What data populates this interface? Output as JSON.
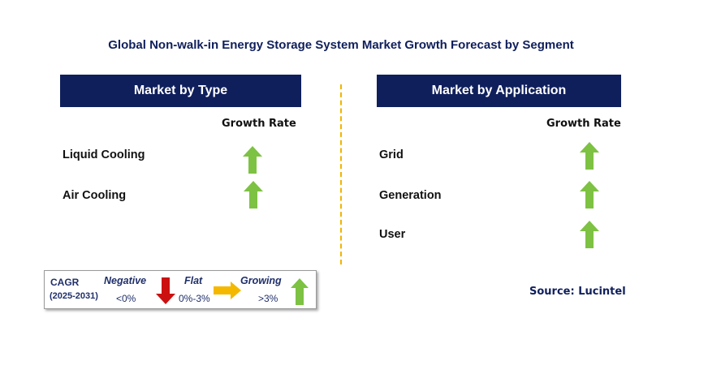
{
  "title": "Global Non-walk-in Energy Storage System Market Growth Forecast by Segment",
  "type_panel": {
    "header": "Market by Type",
    "growth_label": "Growth Rate",
    "items": [
      {
        "label": "Liquid Cooling",
        "trend": "growing"
      },
      {
        "label": "Air Cooling",
        "trend": "growing"
      }
    ]
  },
  "application_panel": {
    "header": "Market by Application",
    "growth_label": "Growth Rate",
    "items": [
      {
        "label": "Grid",
        "trend": "growing"
      },
      {
        "label": "Generation",
        "trend": "growing"
      },
      {
        "label": "User",
        "trend": "growing"
      }
    ]
  },
  "legend": {
    "cagr": "CAGR",
    "period": "(2025-2031)",
    "negative_label": "Negative",
    "negative_range": "<0%",
    "flat_label": "Flat",
    "flat_range": "0%-3%",
    "growing_label": "Growing",
    "growing_range": ">3%"
  },
  "source": "Source: Lucintel",
  "colors": {
    "header_bg": "#0f1f5c",
    "growing": "#7dc242",
    "negative": "#cc1010",
    "flat": "#f5b800",
    "divider": "#f2b400"
  }
}
